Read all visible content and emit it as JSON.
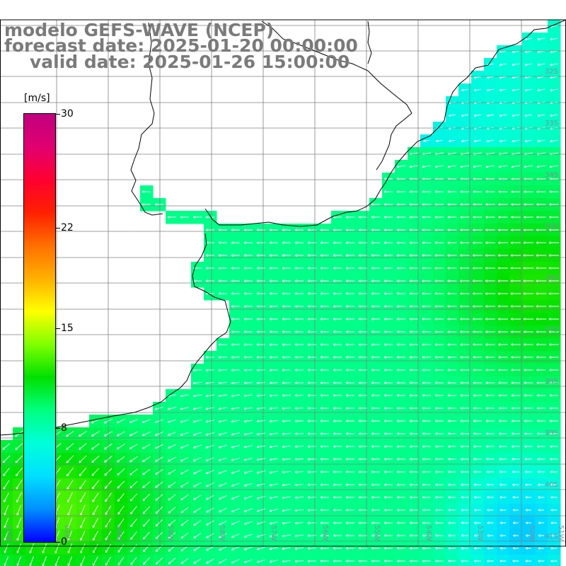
{
  "title": {
    "line1": "modelo GEFS-WAVE (NCEP)",
    "line2": "forecast date: 2025-01-20 00:00:00",
    "line3": "valid date: 2025-01-26 15:00:00"
  },
  "colorbar": {
    "unit": "[m/s]",
    "ticks": [
      "30",
      "22",
      "15",
      "8",
      "0"
    ],
    "tick_values": [
      30,
      22,
      15,
      8,
      0
    ],
    "min": 0,
    "max": 30,
    "colors": [
      "#0000ff",
      "#0090ff",
      "#00e0ff",
      "#00ffd8",
      "#00ff80",
      "#00e000",
      "#80ff00",
      "#ffff00",
      "#ffb000",
      "#ff7000",
      "#ff2000",
      "#ff0030",
      "#e00070",
      "#c00080"
    ]
  },
  "map": {
    "lat_labels": [
      "32S",
      "33S",
      "34S",
      "35S",
      "36S",
      "37S",
      "38S",
      "39S",
      "40S",
      "41S"
    ],
    "lon_labels": [
      "62W",
      "61W",
      "60W",
      "59W",
      "58W",
      "57W",
      "56W",
      "55W",
      "54W",
      "53W",
      "52W",
      "51W"
    ],
    "lat_range": [
      -41.2,
      -30.8
    ],
    "lon_range": [
      -62.0,
      -50.9
    ],
    "land_color": "#ffffff",
    "grid_color": "#808080"
  }
}
